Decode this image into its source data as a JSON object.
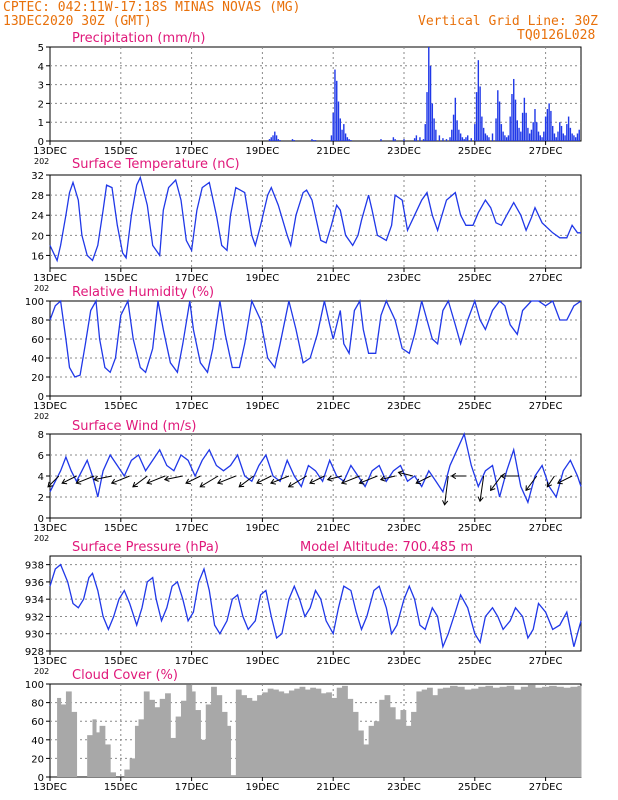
{
  "header": {
    "left_line1": "CPTEC:  042:11W-17:18S  MINAS NOVAS (MG)",
    "left_line2": "13DEC2020 30Z (GMT)",
    "right_line1": "Vertical Grid Line: 30Z",
    "right_line2": "TQ0126L028",
    "model_altitude": "Model Altitude: 700.485 m"
  },
  "colors": {
    "header": "#e8700a",
    "title": "#e0187a",
    "line": "#2038e8",
    "cloud": "#a8a8a8",
    "grid": "#8a8a8a",
    "arrow": "#000000"
  },
  "x_axis": {
    "days": 15,
    "ticks": [
      {
        "day": 0,
        "label": "13DEC"
      },
      {
        "day": 2,
        "label": "15DEC"
      },
      {
        "day": 4,
        "label": "17DEC"
      },
      {
        "day": 6,
        "label": "19DEC"
      },
      {
        "day": 8,
        "label": "21DEC"
      },
      {
        "day": 10,
        "label": "23DEC"
      },
      {
        "day": 12,
        "label": "25DEC"
      },
      {
        "day": 14,
        "label": "27DEC"
      }
    ],
    "year_stub": "202"
  },
  "chart_data": [
    {
      "type": "bar",
      "id": "precip",
      "title": "Precipitation (mm/h)",
      "ylim": [
        0,
        5
      ],
      "yticks": [
        0,
        1,
        2,
        3,
        4,
        5
      ],
      "x_unit": "days since 13DEC 00Z",
      "x": [
        6.2,
        6.25,
        6.3,
        6.35,
        6.4,
        6.45,
        6.5,
        6.85,
        6.9,
        7.4,
        7.45,
        7.5,
        7.95,
        8.0,
        8.05,
        8.1,
        8.15,
        8.2,
        8.25,
        8.3,
        8.35,
        8.4,
        8.45,
        8.5,
        9.35,
        9.7,
        9.75,
        10.0,
        10.3,
        10.35,
        10.45,
        10.55,
        10.6,
        10.65,
        10.7,
        10.75,
        10.8,
        10.85,
        10.9,
        11.0,
        11.1,
        11.2,
        11.3,
        11.35,
        11.4,
        11.45,
        11.5,
        11.55,
        11.6,
        11.65,
        11.7,
        11.75,
        11.8,
        11.9,
        12.0,
        12.05,
        12.1,
        12.15,
        12.2,
        12.25,
        12.3,
        12.35,
        12.4,
        12.5,
        12.6,
        12.65,
        12.7,
        12.75,
        12.8,
        12.85,
        12.9,
        12.95,
        13.0,
        13.05,
        13.1,
        13.15,
        13.2,
        13.25,
        13.3,
        13.35,
        13.4,
        13.45,
        13.5,
        13.55,
        13.6,
        13.65,
        13.7,
        13.75,
        13.8,
        13.85,
        13.9,
        13.95,
        14.0,
        14.05,
        14.1,
        14.15,
        14.2,
        14.25,
        14.3,
        14.35,
        14.4,
        14.45,
        14.5,
        14.55,
        14.6,
        14.65,
        14.7,
        14.75,
        14.8,
        14.85,
        14.9,
        14.95
      ],
      "values": [
        0.1,
        0.2,
        0.3,
        0.5,
        0.3,
        0.1,
        0.05,
        0.1,
        0.05,
        0.1,
        0.05,
        0.05,
        0.3,
        1.5,
        3.8,
        3.2,
        2.1,
        1.2,
        0.6,
        0.9,
        0.4,
        0.2,
        0.1,
        0.05,
        0.1,
        0.2,
        0.1,
        0.1,
        0.15,
        0.3,
        0.2,
        0.1,
        0.9,
        2.6,
        5.0,
        4.0,
        2.0,
        1.2,
        0.6,
        0.3,
        0.15,
        0.1,
        0.2,
        0.6,
        1.4,
        2.3,
        1.1,
        0.6,
        0.4,
        0.2,
        0.1,
        0.2,
        0.3,
        0.15,
        0.9,
        2.6,
        4.3,
        2.9,
        1.3,
        0.7,
        0.4,
        0.3,
        0.2,
        0.4,
        1.2,
        2.7,
        2.1,
        0.9,
        0.5,
        0.3,
        0.2,
        0.3,
        1.3,
        2.5,
        3.3,
        2.2,
        1.1,
        0.7,
        0.5,
        1.5,
        2.3,
        1.5,
        0.7,
        0.4,
        0.6,
        1.0,
        1.7,
        1.0,
        0.5,
        0.3,
        0.2,
        0.5,
        1.3,
        1.7,
        2.0,
        1.6,
        0.8,
        0.4,
        0.2,
        0.5,
        1.0,
        0.8,
        0.4,
        0.3,
        0.9,
        1.3,
        0.7,
        0.4,
        0.3,
        0.2,
        0.4,
        0.6
      ]
    },
    {
      "type": "line",
      "id": "temp",
      "title": "Surface Temperature (nC)",
      "ylim": [
        13.5,
        32
      ],
      "yticks": [
        16,
        20,
        24,
        28,
        32
      ],
      "x_unit": "days since 13DEC 00Z",
      "x": [
        0,
        0.1,
        0.2,
        0.3,
        0.45,
        0.55,
        0.65,
        0.8,
        0.9,
        1.05,
        1.2,
        1.35,
        1.5,
        1.6,
        1.75,
        1.9,
        2.05,
        2.15,
        2.3,
        2.45,
        2.55,
        2.75,
        2.9,
        3.1,
        3.2,
        3.35,
        3.55,
        3.7,
        3.85,
        4.0,
        4.15,
        4.3,
        4.5,
        4.7,
        4.85,
        5.0,
        5.1,
        5.25,
        5.5,
        5.7,
        5.8,
        5.95,
        6.15,
        6.25,
        6.45,
        6.7,
        6.8,
        6.95,
        7.15,
        7.25,
        7.4,
        7.65,
        7.8,
        7.95,
        8.1,
        8.2,
        8.35,
        8.55,
        8.7,
        8.8,
        9.0,
        9.1,
        9.25,
        9.5,
        9.65,
        9.75,
        9.95,
        10.1,
        10.3,
        10.5,
        10.65,
        10.8,
        10.95,
        11.05,
        11.2,
        11.45,
        11.6,
        11.75,
        11.95,
        12.1,
        12.3,
        12.45,
        12.6,
        12.75,
        12.9,
        13.1,
        13.3,
        13.45,
        13.6,
        13.7,
        13.9,
        14.2,
        14.4,
        14.6,
        14.75,
        14.9,
        15
      ],
      "values": [
        18,
        16.5,
        15,
        18,
        24,
        28.5,
        30.5,
        27,
        20,
        16,
        15,
        18,
        25,
        30,
        29.5,
        22,
        16.5,
        15.5,
        24,
        30,
        31.5,
        26,
        18,
        16,
        25,
        29.5,
        31,
        27,
        19,
        17,
        25,
        29.5,
        30.5,
        24,
        18,
        17,
        24,
        29.5,
        28.5,
        20,
        18,
        22,
        28,
        29.5,
        26,
        20,
        18,
        24,
        28.5,
        29,
        27,
        19,
        18.5,
        22,
        26,
        25,
        20,
        18,
        20,
        23,
        28,
        25,
        20,
        19,
        22,
        28,
        27,
        21,
        24,
        27,
        28.5,
        24,
        21,
        23.5,
        27,
        28.5,
        24,
        22,
        22,
        24.5,
        27,
        25.5,
        22.5,
        22,
        24,
        26.5,
        24,
        21,
        23.5,
        25.5,
        22.5,
        20.5,
        19.5,
        19.5,
        22,
        20.5,
        20.5
      ]
    },
    {
      "type": "line",
      "id": "rh",
      "title": "Relative Humidity (%)",
      "ylim": [
        0,
        100
      ],
      "yticks": [
        0,
        20,
        40,
        60,
        80,
        100
      ],
      "x_unit": "days since 13DEC 00Z",
      "x": [
        0,
        0.15,
        0.3,
        0.45,
        0.55,
        0.7,
        0.85,
        1.0,
        1.15,
        1.3,
        1.4,
        1.55,
        1.7,
        1.85,
        2.0,
        2.2,
        2.35,
        2.55,
        2.7,
        2.9,
        3.05,
        3.2,
        3.4,
        3.6,
        3.75,
        3.95,
        4.05,
        4.25,
        4.45,
        4.6,
        4.8,
        4.95,
        5.15,
        5.35,
        5.5,
        5.7,
        5.95,
        6.15,
        6.35,
        6.5,
        6.75,
        6.95,
        7.15,
        7.35,
        7.55,
        7.75,
        7.9,
        8.0,
        8.2,
        8.3,
        8.45,
        8.6,
        8.75,
        8.85,
        9.0,
        9.2,
        9.35,
        9.5,
        9.75,
        9.95,
        10.15,
        10.3,
        10.5,
        10.8,
        10.95,
        11.1,
        11.25,
        11.45,
        11.6,
        11.8,
        12.0,
        12.15,
        12.3,
        12.5,
        12.7,
        12.85,
        13.0,
        13.2,
        13.35,
        13.6,
        13.8,
        14.0,
        14.2,
        14.4,
        14.6,
        14.8,
        15
      ],
      "values": [
        80,
        95,
        100,
        60,
        30,
        20,
        22,
        55,
        90,
        100,
        60,
        30,
        25,
        40,
        85,
        100,
        60,
        30,
        25,
        50,
        100,
        70,
        35,
        25,
        55,
        100,
        70,
        35,
        25,
        50,
        100,
        65,
        30,
        30,
        55,
        100,
        80,
        40,
        30,
        55,
        100,
        70,
        35,
        40,
        65,
        100,
        75,
        60,
        90,
        55,
        45,
        90,
        100,
        70,
        45,
        45,
        85,
        100,
        80,
        50,
        45,
        65,
        100,
        60,
        55,
        90,
        100,
        75,
        55,
        80,
        100,
        80,
        70,
        90,
        100,
        95,
        75,
        65,
        90,
        100,
        100,
        95,
        100,
        80,
        80,
        95,
        100
      ]
    },
    {
      "type": "line",
      "id": "wind",
      "title": "Surface Wind (m/s)",
      "ylim": [
        0,
        8
      ],
      "yticks": [
        0,
        2,
        4,
        6,
        8
      ],
      "x_unit": "days since 13DEC 00Z",
      "x": [
        0,
        0.15,
        0.3,
        0.45,
        0.6,
        0.75,
        0.9,
        1.05,
        1.2,
        1.35,
        1.5,
        1.7,
        1.9,
        2.1,
        2.3,
        2.5,
        2.7,
        2.9,
        3.1,
        3.3,
        3.5,
        3.7,
        3.9,
        4.1,
        4.3,
        4.5,
        4.7,
        4.9,
        5.1,
        5.3,
        5.5,
        5.7,
        5.9,
        6.1,
        6.3,
        6.5,
        6.7,
        6.9,
        7.1,
        7.3,
        7.5,
        7.7,
        7.9,
        8.1,
        8.3,
        8.5,
        8.7,
        8.9,
        9.1,
        9.3,
        9.5,
        9.7,
        9.9,
        10.1,
        10.3,
        10.5,
        10.7,
        10.9,
        11.1,
        11.3,
        11.5,
        11.7,
        11.9,
        12.1,
        12.3,
        12.5,
        12.7,
        12.9,
        13.1,
        13.3,
        13.5,
        13.7,
        13.9,
        14.1,
        14.3,
        14.5,
        14.7,
        14.9,
        15
      ],
      "values": [
        2.5,
        3.5,
        4.5,
        5.8,
        4.5,
        3.5,
        4.5,
        5.5,
        4.0,
        2.0,
        4.5,
        6.0,
        5.0,
        4.0,
        5.5,
        6.0,
        4.5,
        5.5,
        6.5,
        5.0,
        4.5,
        6.0,
        5.5,
        4.0,
        5.5,
        6.5,
        5.0,
        4.5,
        5.0,
        6.0,
        4.0,
        3.5,
        5.0,
        6.0,
        4.0,
        3.5,
        5.5,
        4.0,
        3.0,
        5.0,
        4.5,
        3.5,
        5.5,
        4.0,
        3.5,
        5.0,
        4.0,
        3.0,
        4.5,
        5.0,
        3.5,
        4.5,
        5.0,
        3.5,
        4.0,
        3.0,
        4.5,
        3.5,
        2.5,
        5.0,
        6.5,
        8.0,
        5.0,
        3.0,
        4.5,
        5.0,
        2.0,
        4.5,
        6.5,
        3.0,
        1.5,
        4.0,
        5.0,
        3.0,
        2.0,
        4.5,
        5.5,
        4.0,
        3.0
      ],
      "arrows": {
        "x": [
          0.25,
          0.75,
          1.25,
          1.75,
          2.25,
          2.75,
          3.25,
          3.75,
          4.25,
          4.75,
          5.25,
          5.75,
          6.25,
          6.75,
          7.25,
          7.75,
          8.25,
          8.75,
          9.25,
          9.75,
          10.25,
          10.75,
          11.25,
          11.75,
          12.25,
          12.75,
          13.25,
          13.75,
          14.25,
          14.75
        ],
        "u": [
          -3,
          -4,
          -5,
          -5,
          -5,
          -4,
          -5,
          -5,
          -4,
          -5,
          -5,
          -4,
          -4,
          -5,
          -5,
          -4,
          -4,
          -5,
          -5,
          -4,
          -4,
          -4,
          -1,
          -4,
          -1,
          -3,
          -5,
          -3,
          -2,
          -4
        ],
        "v": [
          -3,
          -2,
          -2,
          -1,
          -2,
          -3,
          -2,
          -1,
          -2,
          -3,
          -2,
          -3,
          -2,
          -2,
          -3,
          -2,
          -1,
          -2,
          -2,
          -1,
          1,
          -2,
          -8,
          0,
          -7,
          -4,
          0,
          -4,
          -3,
          -2
        ]
      }
    },
    {
      "type": "line",
      "id": "pres",
      "title": "Surface Pressure (hPa)",
      "ylim": [
        928,
        939
      ],
      "yticks": [
        928,
        930,
        932,
        934,
        936,
        938
      ],
      "x_unit": "days since 13DEC 00Z",
      "x": [
        0,
        0.15,
        0.3,
        0.5,
        0.65,
        0.8,
        0.95,
        1.1,
        1.2,
        1.35,
        1.5,
        1.65,
        1.8,
        1.95,
        2.1,
        2.25,
        2.45,
        2.6,
        2.75,
        2.9,
        3.0,
        3.15,
        3.3,
        3.45,
        3.6,
        3.75,
        3.9,
        4.05,
        4.2,
        4.35,
        4.5,
        4.65,
        4.8,
        5.0,
        5.15,
        5.3,
        5.45,
        5.6,
        5.8,
        5.95,
        6.1,
        6.25,
        6.4,
        6.55,
        6.75,
        6.9,
        7.05,
        7.2,
        7.35,
        7.5,
        7.65,
        7.8,
        8.0,
        8.15,
        8.3,
        8.5,
        8.65,
        8.8,
        8.95,
        9.15,
        9.3,
        9.5,
        9.65,
        9.8,
        10.0,
        10.15,
        10.3,
        10.45,
        10.6,
        10.8,
        10.95,
        11.1,
        11.25,
        11.45,
        11.6,
        11.8,
        12.0,
        12.15,
        12.3,
        12.5,
        12.65,
        12.8,
        13.0,
        13.15,
        13.35,
        13.5,
        13.65,
        13.8,
        14.0,
        14.2,
        14.4,
        14.6,
        14.8,
        15
      ],
      "values": [
        935.5,
        937.5,
        938,
        936,
        933.5,
        933,
        934,
        936.5,
        937,
        935,
        932,
        930.5,
        932,
        934,
        935,
        933.5,
        931,
        933,
        936,
        936.5,
        934,
        931.5,
        933,
        935.5,
        936,
        934,
        931.5,
        932.5,
        936,
        937.5,
        935,
        931,
        930,
        931.5,
        934,
        934.5,
        932,
        930.5,
        931.5,
        934.5,
        935,
        932,
        929.5,
        930,
        934,
        935.5,
        934,
        932,
        933,
        935,
        934,
        931.5,
        930,
        933,
        935.5,
        935,
        932.5,
        930.5,
        932,
        935,
        935.5,
        933,
        930,
        931,
        934,
        935.5,
        934,
        931,
        930.5,
        933,
        932,
        928.5,
        930,
        932.5,
        934.5,
        933,
        930,
        929,
        932,
        933,
        932,
        930.5,
        931.5,
        933,
        932,
        929.5,
        930.5,
        933.5,
        932.5,
        930.5,
        931,
        932.5,
        928.5,
        931.5
      ]
    },
    {
      "type": "area",
      "id": "cloud",
      "title": "Cloud Cover (%)",
      "ylim": [
        0,
        100
      ],
      "yticks": [
        0,
        20,
        40,
        60,
        80,
        100
      ],
      "x_unit": "days since 13DEC 00Z",
      "x": [
        0,
        0.2,
        0.3,
        0.45,
        0.6,
        0.75,
        0.9,
        1.05,
        1.2,
        1.3,
        1.4,
        1.55,
        1.7,
        1.85,
        1.95,
        2.1,
        2.25,
        2.4,
        2.5,
        2.65,
        2.8,
        2.95,
        3.1,
        3.25,
        3.4,
        3.55,
        3.7,
        3.85,
        4.0,
        4.1,
        4.25,
        4.4,
        4.55,
        4.7,
        4.85,
        5.0,
        5.1,
        5.25,
        5.4,
        5.55,
        5.7,
        5.85,
        6.0,
        6.15,
        6.3,
        6.45,
        6.6,
        6.75,
        6.9,
        7.05,
        7.2,
        7.35,
        7.5,
        7.65,
        7.8,
        7.95,
        8.1,
        8.25,
        8.4,
        8.55,
        8.7,
        8.85,
        9.0,
        9.15,
        9.3,
        9.45,
        9.6,
        9.75,
        9.9,
        10.05,
        10.2,
        10.35,
        10.5,
        10.65,
        10.8,
        10.95,
        11.1,
        11.3,
        11.5,
        11.7,
        11.9,
        12.1,
        12.3,
        12.5,
        12.7,
        12.9,
        13.1,
        13.3,
        13.5,
        13.7,
        13.9,
        14.1,
        14.3,
        14.5,
        14.7,
        14.9,
        15
      ],
      "values": [
        0,
        85,
        78,
        92,
        70,
        0,
        0,
        45,
        62,
        48,
        55,
        35,
        5,
        0,
        0,
        8,
        20,
        55,
        62,
        92,
        83,
        75,
        84,
        90,
        42,
        65,
        82,
        99,
        92,
        72,
        40,
        78,
        97,
        88,
        70,
        55,
        2,
        94,
        88,
        85,
        82,
        88,
        91,
        95,
        94,
        92,
        90,
        93,
        95,
        97,
        94,
        96,
        95,
        90,
        91,
        85,
        96,
        98,
        84,
        70,
        50,
        35,
        55,
        60,
        83,
        88,
        75,
        62,
        72,
        55,
        70,
        92,
        94,
        96,
        88,
        95,
        96,
        98,
        97,
        94,
        95,
        97,
        98,
        96,
        97,
        98,
        94,
        97,
        99,
        96,
        97,
        98,
        97,
        96,
        97,
        98,
        97
      ]
    }
  ]
}
